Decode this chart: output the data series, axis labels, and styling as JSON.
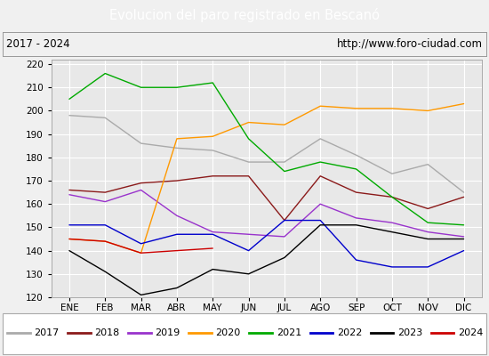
{
  "title": "Evolucion del paro registrado en Bescanó",
  "subtitle_left": "2017 - 2024",
  "subtitle_right": "http://www.foro-ciudad.com",
  "months": [
    "ENE",
    "FEB",
    "MAR",
    "ABR",
    "MAY",
    "JUN",
    "JUL",
    "AGO",
    "SEP",
    "OCT",
    "NOV",
    "DIC"
  ],
  "ylim": [
    120,
    222
  ],
  "yticks": [
    120,
    130,
    140,
    150,
    160,
    170,
    180,
    190,
    200,
    210,
    220
  ],
  "series": {
    "2017": [
      198,
      197,
      186,
      184,
      183,
      178,
      178,
      188,
      181,
      173,
      177,
      165
    ],
    "2018": [
      166,
      165,
      169,
      170,
      172,
      172,
      153,
      172,
      165,
      163,
      158,
      163
    ],
    "2019": [
      164,
      161,
      166,
      155,
      148,
      147,
      146,
      160,
      154,
      152,
      148,
      146
    ],
    "2020": [
      145,
      144,
      139,
      188,
      189,
      195,
      194,
      202,
      201,
      201,
      200,
      203
    ],
    "2021": [
      205,
      216,
      210,
      210,
      212,
      188,
      174,
      178,
      175,
      163,
      152,
      151
    ],
    "2022": [
      151,
      151,
      143,
      147,
      147,
      140,
      153,
      153,
      136,
      133,
      133,
      140
    ],
    "2023": [
      140,
      131,
      121,
      124,
      132,
      130,
      137,
      151,
      151,
      148,
      145,
      145
    ],
    "2024": [
      145,
      144,
      139,
      140,
      141,
      null,
      null,
      null,
      null,
      null,
      null,
      null
    ]
  },
  "colors": {
    "2017": "#aaaaaa",
    "2018": "#8b1a1a",
    "2019": "#9933cc",
    "2020": "#ff9900",
    "2021": "#00aa00",
    "2022": "#0000cc",
    "2023": "#000000",
    "2024": "#cc0000"
  },
  "title_bg": "#5599dd",
  "title_color": "white",
  "subtitle_bg": "#f0f0f0",
  "plot_bg": "#e8e8e8",
  "grid_color": "white",
  "legend_bg": "white",
  "legend_border": "#aaaaaa",
  "fig_bg": "#f0f0f0"
}
